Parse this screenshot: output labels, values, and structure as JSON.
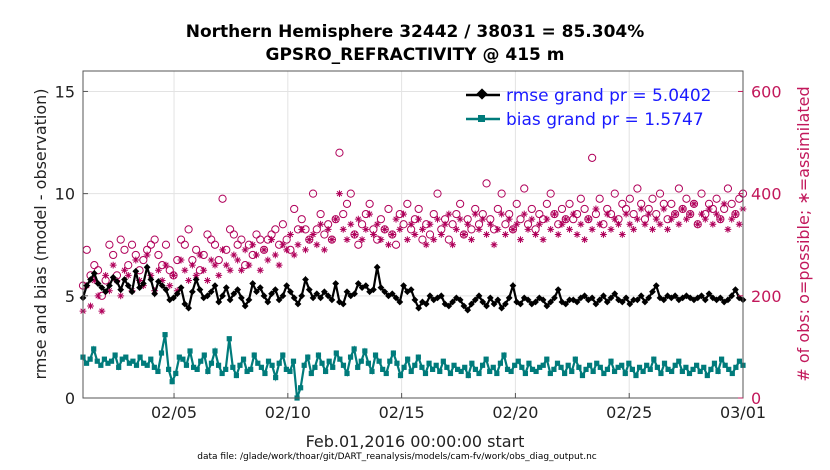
{
  "chart_data": {
    "type": "line",
    "title": "Northern Hemisphere 32442 / 38031 = 85.304%",
    "subtitle": "GPSRO_REFRACTIVITY @ 415 m",
    "ylabel": "rmse and bias (model - observation)",
    "ylabel_right": "# of obs: o=possible; ∗=assimilated",
    "xlabel": "Feb.01,2016 00:00:00 start",
    "footnote": "data file: /glade/work/thoar/git/DART_reanalysis/models/cam-fv/work/obs_diag_output.nc",
    "xlim": [
      1,
      30
    ],
    "ylim": [
      0,
      16
    ],
    "ylim_right": [
      0,
      640
    ],
    "x_ticks": [
      {
        "value": 5,
        "label": "02/05"
      },
      {
        "value": 10,
        "label": "02/10"
      },
      {
        "value": 15,
        "label": "02/15"
      },
      {
        "value": 20,
        "label": "02/20"
      },
      {
        "value": 25,
        "label": "02/25"
      },
      {
        "value": 30,
        "label": "03/01"
      }
    ],
    "y_ticks": [
      0,
      5,
      10,
      15
    ],
    "y_ticks_right": [
      0,
      200,
      400,
      600
    ],
    "grid": true,
    "legend_position": "top-right",
    "series": [
      {
        "name": "rmse grand pr = 5.0402",
        "color": "#000000",
        "marker": "diamond",
        "values": [
          4.9,
          5.5,
          5.8,
          6.1,
          5.6,
          5.4,
          5.2,
          5.5,
          5.9,
          5.7,
          5.3,
          5.8,
          5.5,
          5.2,
          6.2,
          5.4,
          5.6,
          6.4,
          5.8,
          5.1,
          5.7,
          5.5,
          5.3,
          4.8,
          4.9,
          5.1,
          5.4,
          4.6,
          4.4,
          5.2,
          5.8,
          5.3,
          4.9,
          5.0,
          5.2,
          5.5,
          4.7,
          5.0,
          5.4,
          4.8,
          5.1,
          5.3,
          4.9,
          4.5,
          4.8,
          5.6,
          5.2,
          5.4,
          5.0,
          4.7,
          5.1,
          5.3,
          4.8,
          5.0,
          5.5,
          5.2,
          4.9,
          4.6,
          5.0,
          5.8,
          5.3,
          4.9,
          5.1,
          4.9,
          5.2,
          5.0,
          4.8,
          5.6,
          4.7,
          4.6,
          5.2,
          5.0,
          5.1,
          5.6,
          5.4,
          5.5,
          5.2,
          5.3,
          6.4,
          5.4,
          5.2,
          5.0,
          5.1,
          4.9,
          4.7,
          5.5,
          5.2,
          5.3,
          4.8,
          4.4,
          4.7,
          4.6,
          5.0,
          4.8,
          4.9,
          5.0,
          4.6,
          4.5,
          4.7,
          4.9,
          4.8,
          4.5,
          4.3,
          4.6,
          4.8,
          5.0,
          4.7,
          4.5,
          4.9,
          4.6,
          4.8,
          4.4,
          4.6,
          4.9,
          5.5,
          4.7,
          4.6,
          4.9,
          4.8,
          4.6,
          4.7,
          4.9,
          4.8,
          4.5,
          4.7,
          4.9,
          5.3,
          4.7,
          4.6,
          4.8,
          4.8,
          4.7,
          4.9,
          5.0,
          4.8,
          4.9,
          4.6,
          4.8,
          5.0,
          4.7,
          4.9,
          5.1,
          4.8,
          4.7,
          4.9,
          4.6,
          4.8,
          4.8,
          5.0,
          4.7,
          4.9,
          5.2,
          5.5,
          4.9,
          4.8,
          5.0,
          4.9,
          5.0,
          4.8,
          4.9,
          5.0,
          4.9,
          4.8,
          4.9,
          5.0,
          4.8,
          5.1,
          4.9,
          4.8,
          4.9,
          4.7,
          4.8,
          5.0,
          5.3,
          4.9,
          4.8
        ]
      },
      {
        "name": "bias grand pr = 1.5747",
        "color": "#007b7b",
        "marker": "square",
        "values": [
          2.0,
          1.7,
          1.9,
          2.4,
          1.8,
          1.6,
          1.9,
          1.7,
          1.8,
          2.1,
          1.5,
          1.9,
          2.0,
          1.7,
          1.8,
          1.6,
          2.0,
          1.7,
          1.6,
          1.9,
          1.5,
          1.3,
          2.2,
          3.1,
          1.4,
          0.8,
          1.2,
          2.0,
          1.9,
          1.6,
          2.3,
          1.5,
          1.4,
          1.8,
          2.1,
          1.3,
          1.7,
          2.3,
          1.6,
          1.2,
          1.4,
          2.9,
          1.5,
          1.1,
          1.6,
          1.9,
          1.3,
          1.4,
          2.1,
          1.7,
          1.5,
          1.2,
          1.8,
          1.6,
          1.0,
          1.7,
          2.1,
          1.4,
          1.3,
          1.8,
          0.0,
          0.5,
          1.6,
          2.0,
          1.2,
          1.5,
          2.1,
          1.7,
          1.3,
          1.8,
          1.5,
          2.2,
          1.9,
          1.6,
          1.2,
          2.0,
          2.4,
          1.5,
          1.8,
          2.3,
          1.7,
          1.3,
          2.1,
          1.8,
          1.4,
          1.2,
          1.8,
          2.2,
          1.7,
          1.1,
          1.5,
          1.9,
          1.3,
          1.6,
          2.0,
          1.5,
          1.2,
          1.7,
          1.4,
          1.6,
          1.3,
          1.8,
          1.5,
          1.2,
          1.6,
          1.4,
          1.3,
          1.5,
          1.1,
          1.7,
          1.4,
          1.2,
          1.6,
          1.9,
          1.3,
          1.5,
          1.2,
          1.7,
          2.1,
          1.4,
          1.3,
          1.6,
          1.8,
          1.5,
          1.2,
          1.7,
          1.4,
          1.3,
          1.5,
          1.6,
          1.9,
          1.2,
          1.4,
          1.7,
          1.5,
          1.2,
          1.6,
          1.3,
          1.9,
          1.5,
          1.1,
          1.4,
          1.6,
          1.3,
          1.7,
          1.5,
          1.2,
          1.4,
          1.8,
          1.3,
          1.5,
          1.6,
          1.2,
          1.7,
          1.4,
          1.1,
          1.5,
          1.3,
          1.6,
          1.4,
          1.9,
          1.5,
          1.2,
          1.7,
          1.4,
          1.3,
          1.6,
          1.8,
          1.3,
          1.5,
          1.2,
          1.4,
          1.6,
          1.3,
          1.5,
          1.1,
          1.4,
          1.7,
          1.3,
          1.9,
          1.6,
          1.4,
          1.2,
          1.5,
          1.8,
          1.6
        ]
      }
    ],
    "obs_possible": {
      "marker": "circle",
      "color": "#b0005a",
      "values": [
        220,
        290,
        240,
        260,
        250,
        200,
        230,
        300,
        280,
        240,
        310,
        290,
        260,
        300,
        280,
        250,
        270,
        290,
        300,
        310,
        280,
        260,
        300,
        250,
        240,
        270,
        310,
        300,
        330,
        270,
        290,
        250,
        280,
        320,
        310,
        300,
        270,
        390,
        290,
        330,
        320,
        300,
        310,
        260,
        300,
        280,
        320,
        310,
        290,
        310,
        320,
        330,
        300,
        340,
        310,
        290,
        370,
        330,
        350,
        330,
        310,
        400,
        330,
        360,
        320,
        340,
        310,
        350,
        480,
        360,
        380,
        400,
        320,
        300,
        340,
        360,
        380,
        330,
        310,
        350,
        330,
        370,
        320,
        300,
        360,
        340,
        380,
        330,
        350,
        370,
        310,
        340,
        320,
        360,
        400,
        330,
        350,
        310,
        340,
        360,
        380,
        320,
        350,
        330,
        370,
        340,
        360,
        420,
        350,
        330,
        370,
        400,
        340,
        360,
        330,
        380,
        350,
        410,
        340,
        370,
        330,
        360,
        350,
        380,
        400,
        360,
        340,
        370,
        350,
        380,
        350,
        360,
        390,
        370,
        350,
        470,
        360,
        390,
        340,
        370,
        360,
        400,
        350,
        380,
        370,
        390,
        360,
        410,
        380,
        350,
        370,
        390,
        360,
        400,
        380,
        350,
        380,
        360,
        410,
        370,
        390,
        360,
        380,
        340,
        400,
        360,
        380,
        370,
        390,
        350,
        370,
        410,
        380,
        360,
        390,
        400
      ]
    },
    "obs_assimilated": {
      "marker": "asterisk",
      "color": "#b0005a",
      "values": [
        170,
        220,
        180,
        230,
        200,
        170,
        240,
        210,
        260,
        230,
        200,
        250,
        240,
        210,
        270,
        230,
        220,
        280,
        240,
        210,
        250,
        230,
        260,
        220,
        240,
        210,
        270,
        250,
        230,
        260,
        240,
        280,
        250,
        230,
        270,
        260,
        240,
        290,
        260,
        250,
        280,
        270,
        250,
        290,
        260,
        300,
        280,
        250,
        290,
        270,
        310,
        280,
        260,
        300,
        290,
        320,
        280,
        300,
        330,
        290,
        310,
        320,
        300,
        340,
        290,
        330,
        310,
        350,
        400,
        330,
        310,
        340,
        320,
        350,
        310,
        330,
        360,
        320,
        340,
        310,
        330,
        300,
        320,
        350,
        330,
        360,
        310,
        340,
        320,
        350,
        330,
        300,
        340,
        310,
        350,
        320,
        340,
        360,
        300,
        330,
        350,
        320,
        340,
        310,
        360,
        330,
        350,
        320,
        340,
        300,
        330,
        360,
        320,
        350,
        330,
        340,
        310,
        360,
        330,
        350,
        320,
        340,
        310,
        350,
        330,
        360,
        320,
        340,
        350,
        330,
        360,
        320,
        340,
        310,
        350,
        330,
        370,
        340,
        320,
        360,
        330,
        350,
        340,
        320,
        360,
        340,
        330,
        350,
        370,
        340,
        360,
        330,
        350,
        340,
        370,
        330,
        350,
        360,
        340,
        370,
        350,
        360,
        380,
        340,
        360,
        350,
        370,
        340,
        360,
        350,
        380,
        330,
        350,
        360,
        340,
        370
      ]
    }
  }
}
